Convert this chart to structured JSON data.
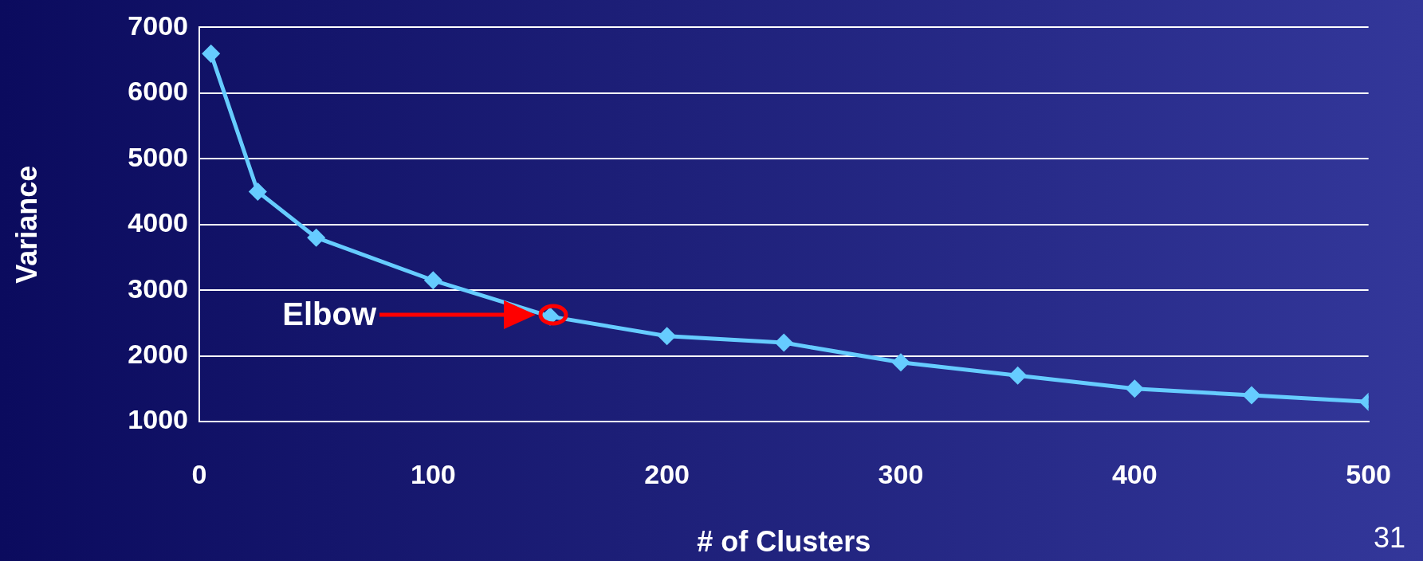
{
  "chart_data": {
    "type": "line",
    "xlabel": "# of Clusters",
    "ylabel": "Variance",
    "x": [
      5,
      25,
      50,
      100,
      150,
      200,
      250,
      300,
      350,
      400,
      450,
      500
    ],
    "series": [
      {
        "color": "#66ccff",
        "values": [
          6600,
          4500,
          3800,
          3150,
          2600,
          2300,
          2200,
          1900,
          1700,
          1500,
          1400,
          1300
        ]
      }
    ],
    "xlim": [
      0,
      500
    ],
    "xticks": [
      0,
      100,
      200,
      300,
      400,
      500
    ],
    "ylim": [
      1000,
      7000
    ],
    "yticks": [
      1000,
      2000,
      3000,
      4000,
      5000,
      6000,
      7000
    ],
    "grid": "y",
    "legend": false,
    "marker": "diamond",
    "line_style": "solid",
    "annotations": [
      "Elbow",
      "31"
    ]
  }
}
